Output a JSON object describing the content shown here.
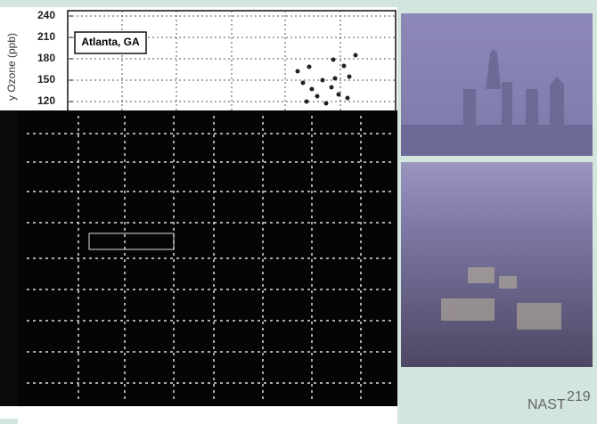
{
  "plot": {
    "y_label": "y Ozone (ppb)",
    "annotation": "Atlanta, GA",
    "ylim": [
      120,
      240
    ],
    "yticks": [
      120,
      150,
      180,
      210,
      240
    ],
    "grid": true
  },
  "caption": {
    "text": "NAST",
    "superscript": "219"
  }
}
